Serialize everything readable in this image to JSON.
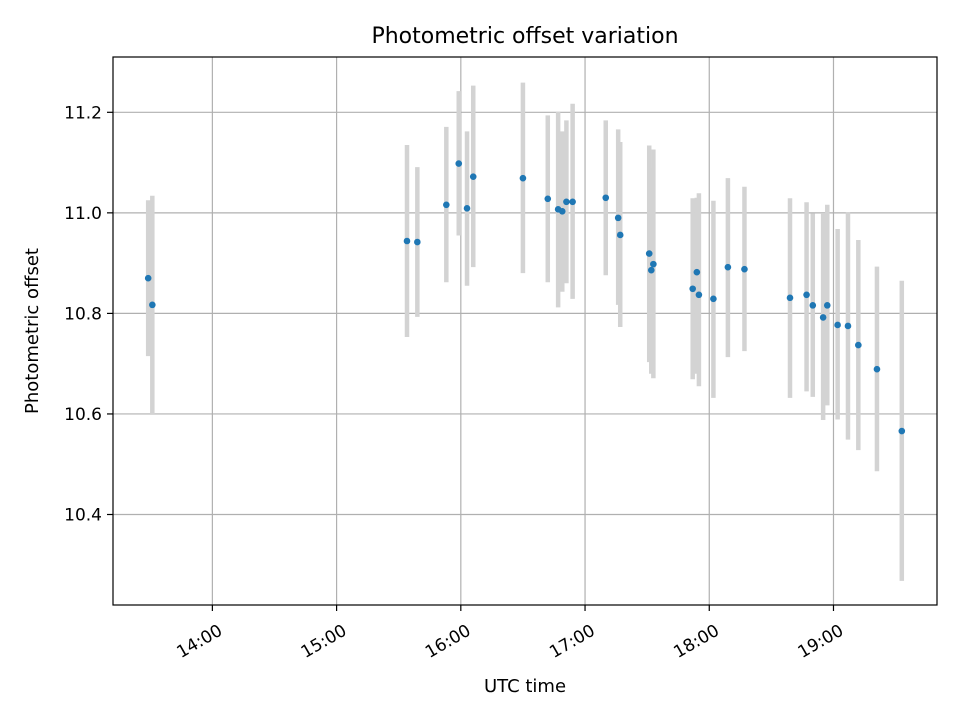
{
  "chart_data": {
    "type": "scatter",
    "title": "Photometric offset variation",
    "xlabel": "UTC time",
    "ylabel": "Photometric offset",
    "xlim": [
      "13:12",
      "19:50"
    ],
    "ylim": [
      10.22,
      11.31
    ],
    "grid": true,
    "x_ticks": [
      "14:00",
      "15:00",
      "16:00",
      "17:00",
      "18:00",
      "19:00"
    ],
    "y_ticks": [
      10.4,
      10.6,
      10.8,
      11.0,
      11.2
    ],
    "colors": {
      "points": "#1f77b4",
      "errorbars": "#d3d3d3",
      "grid": "#b0b0b0",
      "axes": "#000000"
    },
    "series": [
      {
        "points": [
          {
            "time": "13:29",
            "y": 10.87,
            "yerr_low": 10.715,
            "yerr_high": 11.025
          },
          {
            "time": "13:31",
            "y": 10.817,
            "yerr_low": 10.6,
            "yerr_high": 11.034
          },
          {
            "time": "15:34",
            "y": 10.944,
            "yerr_low": 10.753,
            "yerr_high": 11.135
          },
          {
            "time": "15:39",
            "y": 10.942,
            "yerr_low": 10.793,
            "yerr_high": 11.091
          },
          {
            "time": "15:53",
            "y": 11.016,
            "yerr_low": 10.862,
            "yerr_high": 11.171
          },
          {
            "time": "15:59",
            "y": 11.098,
            "yerr_low": 10.955,
            "yerr_high": 11.242
          },
          {
            "time": "16:03",
            "y": 11.009,
            "yerr_low": 10.855,
            "yerr_high": 11.162
          },
          {
            "time": "16:06",
            "y": 11.072,
            "yerr_low": 10.892,
            "yerr_high": 11.253
          },
          {
            "time": "16:30",
            "y": 11.069,
            "yerr_low": 10.88,
            "yerr_high": 11.259
          },
          {
            "time": "16:42",
            "y": 11.028,
            "yerr_low": 10.862,
            "yerr_high": 11.194
          },
          {
            "time": "16:47",
            "y": 11.007,
            "yerr_low": 10.812,
            "yerr_high": 11.201
          },
          {
            "time": "16:49",
            "y": 11.003,
            "yerr_low": 10.843,
            "yerr_high": 11.162
          },
          {
            "time": "16:51",
            "y": 11.022,
            "yerr_low": 10.86,
            "yerr_high": 11.184
          },
          {
            "time": "16:54",
            "y": 11.022,
            "yerr_low": 10.829,
            "yerr_high": 11.217
          },
          {
            "time": "17:10",
            "y": 11.03,
            "yerr_low": 10.876,
            "yerr_high": 11.184
          },
          {
            "time": "17:16",
            "y": 10.99,
            "yerr_low": 10.817,
            "yerr_high": 11.166
          },
          {
            "time": "17:17",
            "y": 10.956,
            "yerr_low": 10.773,
            "yerr_high": 11.141
          },
          {
            "time": "17:31",
            "y": 10.919,
            "yerr_low": 10.703,
            "yerr_high": 11.134
          },
          {
            "time": "17:32",
            "y": 10.886,
            "yerr_low": 10.68,
            "yerr_high": 11.09
          },
          {
            "time": "17:33",
            "y": 10.898,
            "yerr_low": 10.671,
            "yerr_high": 11.126
          },
          {
            "time": "17:52",
            "y": 10.849,
            "yerr_low": 10.669,
            "yerr_high": 11.029
          },
          {
            "time": "17:54",
            "y": 10.882,
            "yerr_low": 10.68,
            "yerr_high": 11.03
          },
          {
            "time": "17:55",
            "y": 10.837,
            "yerr_low": 10.655,
            "yerr_high": 11.039
          },
          {
            "time": "18:02",
            "y": 10.829,
            "yerr_low": 10.632,
            "yerr_high": 11.024
          },
          {
            "time": "18:09",
            "y": 10.892,
            "yerr_low": 10.713,
            "yerr_high": 11.069
          },
          {
            "time": "18:17",
            "y": 10.888,
            "yerr_low": 10.725,
            "yerr_high": 11.052
          },
          {
            "time": "18:39",
            "y": 10.831,
            "yerr_low": 10.632,
            "yerr_high": 11.029
          },
          {
            "time": "18:47",
            "y": 10.837,
            "yerr_low": 10.645,
            "yerr_high": 11.021
          },
          {
            "time": "18:50",
            "y": 10.816,
            "yerr_low": 10.634,
            "yerr_high": 10.999
          },
          {
            "time": "18:55",
            "y": 10.792,
            "yerr_low": 10.588,
            "yerr_high": 10.998
          },
          {
            "time": "18:57",
            "y": 10.816,
            "yerr_low": 10.617,
            "yerr_high": 11.016
          },
          {
            "time": "19:02",
            "y": 10.777,
            "yerr_low": 10.589,
            "yerr_high": 10.968
          },
          {
            "time": "19:07",
            "y": 10.775,
            "yerr_low": 10.549,
            "yerr_high": 11.001
          },
          {
            "time": "19:12",
            "y": 10.737,
            "yerr_low": 10.528,
            "yerr_high": 10.946
          },
          {
            "time": "19:21",
            "y": 10.689,
            "yerr_low": 10.486,
            "yerr_high": 10.893
          },
          {
            "time": "19:33",
            "y": 10.566,
            "yerr_low": 10.268,
            "yerr_high": 10.865
          }
        ]
      }
    ]
  }
}
